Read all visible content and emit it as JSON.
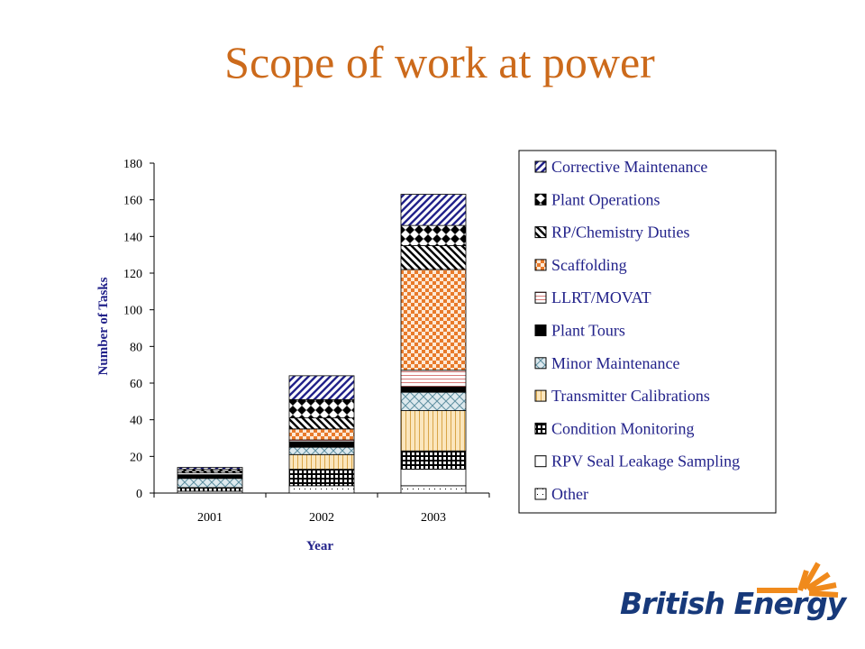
{
  "slide": {
    "title": "Scope of work at power"
  },
  "logo": {
    "text": "British Energy",
    "colors": {
      "text": "#17397a",
      "sunburst": "#f08a1c"
    }
  },
  "colors": {
    "title": "#cc6a1b",
    "navy": "#22228a",
    "orange": "#e87a2a",
    "tan": "#e8c27a",
    "teal": "#5e8fa0"
  },
  "chart_data": {
    "type": "bar",
    "stacked": true,
    "categories": [
      "2001",
      "2002",
      "2003"
    ],
    "xlabel": "Year",
    "ylabel": "Number of Tasks",
    "ylim": [
      0,
      180
    ],
    "yticks": [
      0,
      20,
      40,
      60,
      80,
      100,
      120,
      140,
      160,
      180
    ],
    "grid": false,
    "legend_position": "right",
    "series": [
      {
        "name": "Other",
        "values": [
          1,
          4,
          4
        ]
      },
      {
        "name": "RPV Seal Leakage Sampling",
        "values": [
          0,
          0,
          9
        ]
      },
      {
        "name": "Condition Monitoring",
        "values": [
          2,
          9,
          10
        ]
      },
      {
        "name": "Transmitter Calibrations",
        "values": [
          0,
          8,
          22
        ]
      },
      {
        "name": "Minor Maintenance",
        "values": [
          5,
          4,
          10
        ]
      },
      {
        "name": "Plant Tours",
        "values": [
          2,
          3,
          3
        ]
      },
      {
        "name": "LLRT/MOVAT",
        "values": [
          1,
          1,
          9
        ]
      },
      {
        "name": "Scaffolding",
        "values": [
          0,
          6,
          55
        ]
      },
      {
        "name": "RP/Chemistry Duties",
        "values": [
          1,
          6,
          13
        ]
      },
      {
        "name": "Plant Operations",
        "values": [
          1,
          10,
          11
        ]
      },
      {
        "name": "Corrective Maintenance",
        "values": [
          1,
          13,
          17
        ]
      }
    ]
  }
}
